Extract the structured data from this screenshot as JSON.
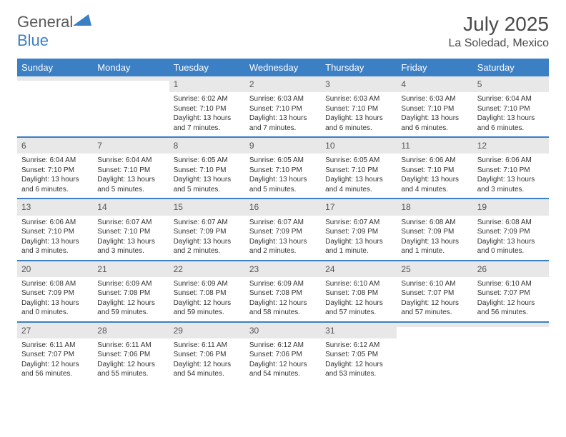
{
  "logo": {
    "part1": "General",
    "part2": "Blue"
  },
  "title": "July 2025",
  "subtitle": "La Soledad, Mexico",
  "colors": {
    "header_bg": "#3b7fc4",
    "header_text": "#ffffff",
    "daynum_bg": "#e8e8e8",
    "text": "#333333",
    "border": "#3b7fc4"
  },
  "day_labels": [
    "Sunday",
    "Monday",
    "Tuesday",
    "Wednesday",
    "Thursday",
    "Friday",
    "Saturday"
  ],
  "weeks": [
    [
      {
        "n": "",
        "sr": "",
        "ss": "",
        "dl": ""
      },
      {
        "n": "",
        "sr": "",
        "ss": "",
        "dl": ""
      },
      {
        "n": "1",
        "sr": "Sunrise: 6:02 AM",
        "ss": "Sunset: 7:10 PM",
        "dl": "Daylight: 13 hours and 7 minutes."
      },
      {
        "n": "2",
        "sr": "Sunrise: 6:03 AM",
        "ss": "Sunset: 7:10 PM",
        "dl": "Daylight: 13 hours and 7 minutes."
      },
      {
        "n": "3",
        "sr": "Sunrise: 6:03 AM",
        "ss": "Sunset: 7:10 PM",
        "dl": "Daylight: 13 hours and 6 minutes."
      },
      {
        "n": "4",
        "sr": "Sunrise: 6:03 AM",
        "ss": "Sunset: 7:10 PM",
        "dl": "Daylight: 13 hours and 6 minutes."
      },
      {
        "n": "5",
        "sr": "Sunrise: 6:04 AM",
        "ss": "Sunset: 7:10 PM",
        "dl": "Daylight: 13 hours and 6 minutes."
      }
    ],
    [
      {
        "n": "6",
        "sr": "Sunrise: 6:04 AM",
        "ss": "Sunset: 7:10 PM",
        "dl": "Daylight: 13 hours and 6 minutes."
      },
      {
        "n": "7",
        "sr": "Sunrise: 6:04 AM",
        "ss": "Sunset: 7:10 PM",
        "dl": "Daylight: 13 hours and 5 minutes."
      },
      {
        "n": "8",
        "sr": "Sunrise: 6:05 AM",
        "ss": "Sunset: 7:10 PM",
        "dl": "Daylight: 13 hours and 5 minutes."
      },
      {
        "n": "9",
        "sr": "Sunrise: 6:05 AM",
        "ss": "Sunset: 7:10 PM",
        "dl": "Daylight: 13 hours and 5 minutes."
      },
      {
        "n": "10",
        "sr": "Sunrise: 6:05 AM",
        "ss": "Sunset: 7:10 PM",
        "dl": "Daylight: 13 hours and 4 minutes."
      },
      {
        "n": "11",
        "sr": "Sunrise: 6:06 AM",
        "ss": "Sunset: 7:10 PM",
        "dl": "Daylight: 13 hours and 4 minutes."
      },
      {
        "n": "12",
        "sr": "Sunrise: 6:06 AM",
        "ss": "Sunset: 7:10 PM",
        "dl": "Daylight: 13 hours and 3 minutes."
      }
    ],
    [
      {
        "n": "13",
        "sr": "Sunrise: 6:06 AM",
        "ss": "Sunset: 7:10 PM",
        "dl": "Daylight: 13 hours and 3 minutes."
      },
      {
        "n": "14",
        "sr": "Sunrise: 6:07 AM",
        "ss": "Sunset: 7:10 PM",
        "dl": "Daylight: 13 hours and 3 minutes."
      },
      {
        "n": "15",
        "sr": "Sunrise: 6:07 AM",
        "ss": "Sunset: 7:09 PM",
        "dl": "Daylight: 13 hours and 2 minutes."
      },
      {
        "n": "16",
        "sr": "Sunrise: 6:07 AM",
        "ss": "Sunset: 7:09 PM",
        "dl": "Daylight: 13 hours and 2 minutes."
      },
      {
        "n": "17",
        "sr": "Sunrise: 6:07 AM",
        "ss": "Sunset: 7:09 PM",
        "dl": "Daylight: 13 hours and 1 minute."
      },
      {
        "n": "18",
        "sr": "Sunrise: 6:08 AM",
        "ss": "Sunset: 7:09 PM",
        "dl": "Daylight: 13 hours and 1 minute."
      },
      {
        "n": "19",
        "sr": "Sunrise: 6:08 AM",
        "ss": "Sunset: 7:09 PM",
        "dl": "Daylight: 13 hours and 0 minutes."
      }
    ],
    [
      {
        "n": "20",
        "sr": "Sunrise: 6:08 AM",
        "ss": "Sunset: 7:09 PM",
        "dl": "Daylight: 13 hours and 0 minutes."
      },
      {
        "n": "21",
        "sr": "Sunrise: 6:09 AM",
        "ss": "Sunset: 7:08 PM",
        "dl": "Daylight: 12 hours and 59 minutes."
      },
      {
        "n": "22",
        "sr": "Sunrise: 6:09 AM",
        "ss": "Sunset: 7:08 PM",
        "dl": "Daylight: 12 hours and 59 minutes."
      },
      {
        "n": "23",
        "sr": "Sunrise: 6:09 AM",
        "ss": "Sunset: 7:08 PM",
        "dl": "Daylight: 12 hours and 58 minutes."
      },
      {
        "n": "24",
        "sr": "Sunrise: 6:10 AM",
        "ss": "Sunset: 7:08 PM",
        "dl": "Daylight: 12 hours and 57 minutes."
      },
      {
        "n": "25",
        "sr": "Sunrise: 6:10 AM",
        "ss": "Sunset: 7:07 PM",
        "dl": "Daylight: 12 hours and 57 minutes."
      },
      {
        "n": "26",
        "sr": "Sunrise: 6:10 AM",
        "ss": "Sunset: 7:07 PM",
        "dl": "Daylight: 12 hours and 56 minutes."
      }
    ],
    [
      {
        "n": "27",
        "sr": "Sunrise: 6:11 AM",
        "ss": "Sunset: 7:07 PM",
        "dl": "Daylight: 12 hours and 56 minutes."
      },
      {
        "n": "28",
        "sr": "Sunrise: 6:11 AM",
        "ss": "Sunset: 7:06 PM",
        "dl": "Daylight: 12 hours and 55 minutes."
      },
      {
        "n": "29",
        "sr": "Sunrise: 6:11 AM",
        "ss": "Sunset: 7:06 PM",
        "dl": "Daylight: 12 hours and 54 minutes."
      },
      {
        "n": "30",
        "sr": "Sunrise: 6:12 AM",
        "ss": "Sunset: 7:06 PM",
        "dl": "Daylight: 12 hours and 54 minutes."
      },
      {
        "n": "31",
        "sr": "Sunrise: 6:12 AM",
        "ss": "Sunset: 7:05 PM",
        "dl": "Daylight: 12 hours and 53 minutes."
      },
      {
        "n": "",
        "sr": "",
        "ss": "",
        "dl": ""
      },
      {
        "n": "",
        "sr": "",
        "ss": "",
        "dl": ""
      }
    ]
  ]
}
